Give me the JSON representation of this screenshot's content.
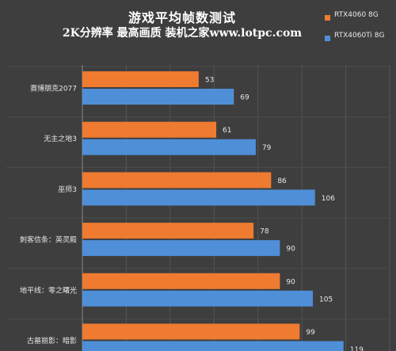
{
  "header": {
    "title": "游戏平均帧数测试",
    "subtitle": "2K分辨率 最高画质 装机之家www.lotpc.com"
  },
  "legend": [
    {
      "label": "RTX4060 8G",
      "color": "#ee7b30"
    },
    {
      "label": "RTX4060Ti 8G",
      "color": "#4f8fd8"
    }
  ],
  "chart_data": {
    "type": "bar",
    "orientation": "horizontal",
    "title": "游戏平均帧数测试",
    "subtitle": "2K分辨率 最高画质 装机之家www.lotpc.com",
    "categories": [
      "赛博朋克2077",
      "无主之地3",
      "巫师3",
      "刺客信条：英灵殿",
      "地平线：零之曙光",
      "古墓丽影：暗影"
    ],
    "series": [
      {
        "name": "RTX4060 8G",
        "color": "#ee7b30",
        "values": [
          53,
          61,
          86,
          78,
          90,
          99
        ]
      },
      {
        "name": "RTX4060Ti 8G",
        "color": "#4f8fd8",
        "values": [
          69,
          79,
          106,
          90,
          105,
          119
        ]
      }
    ],
    "xlim": [
      0,
      140
    ],
    "grid": true,
    "legend_position": "top-right",
    "data_labels": true
  }
}
